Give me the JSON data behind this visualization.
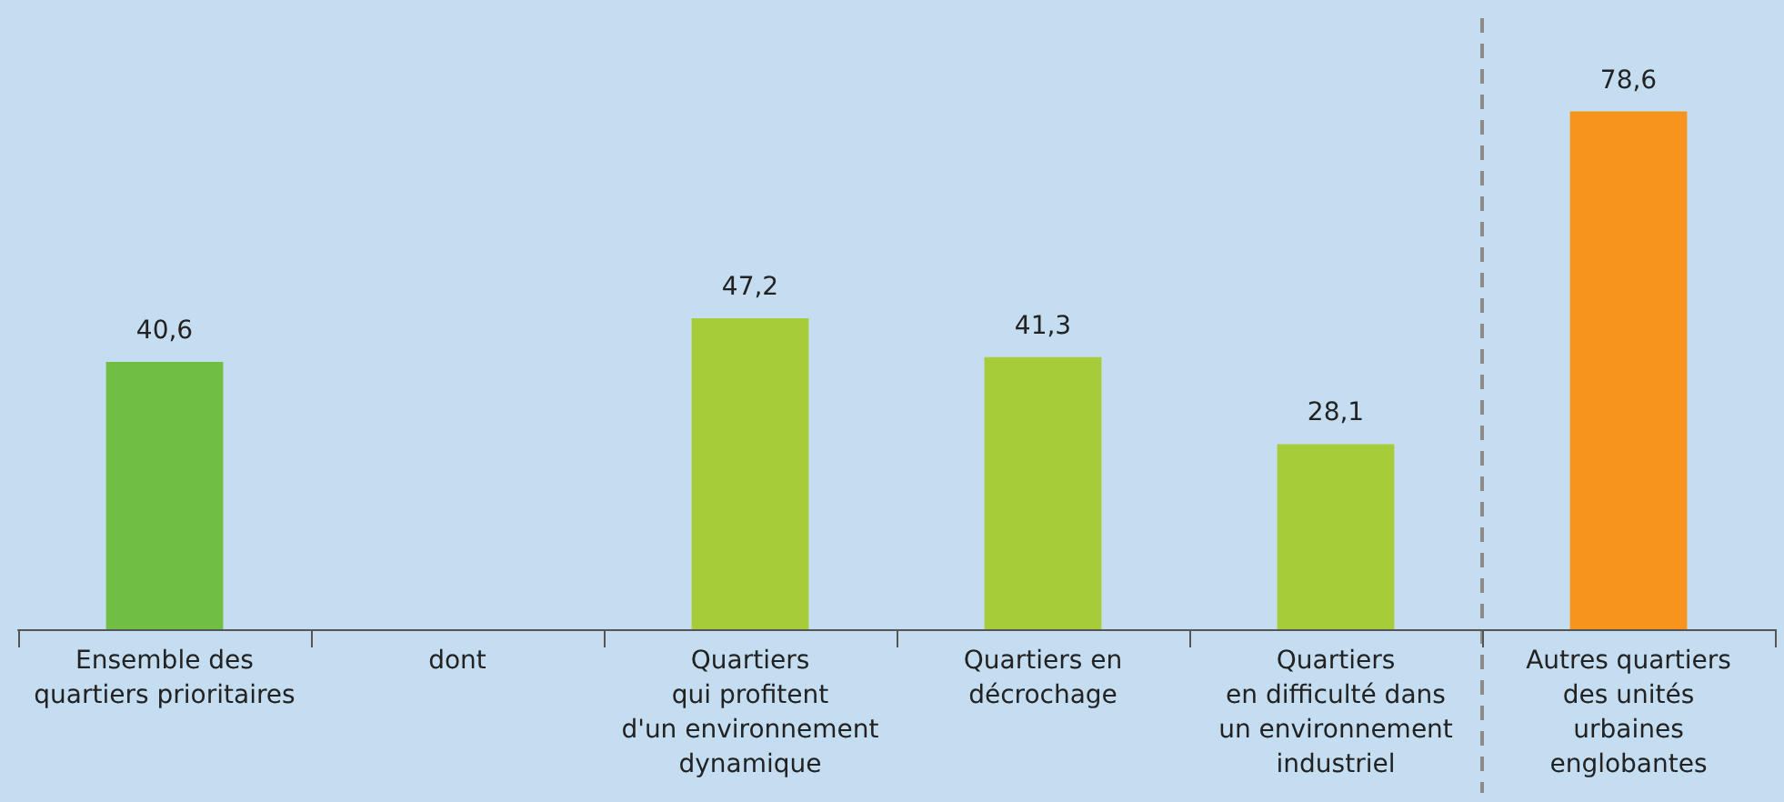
{
  "chart_data": {
    "type": "bar",
    "categories": [
      "Ensemble des\nquartiers prioritaires",
      "dont",
      "Quartiers\nqui profitent\nd'un environnement\ndynamique",
      "Quartiers en\ndécrochage",
      "Quartiers\nen difficulté dans\nun environnement\nindustriel",
      "Autres quartiers\ndes unités\nurbaines\nenglobantes"
    ],
    "values": [
      40.6,
      null,
      47.2,
      41.3,
      28.1,
      78.6
    ],
    "colors": [
      "#70bf44",
      "#a6cc3a",
      "#a6cc3a",
      "#a6cc3a",
      "#a6cc3a",
      "#f7941d"
    ],
    "value_labels": [
      "40,6",
      null,
      "47,2",
      "41,3",
      "28,1",
      "78,6"
    ]
  }
}
